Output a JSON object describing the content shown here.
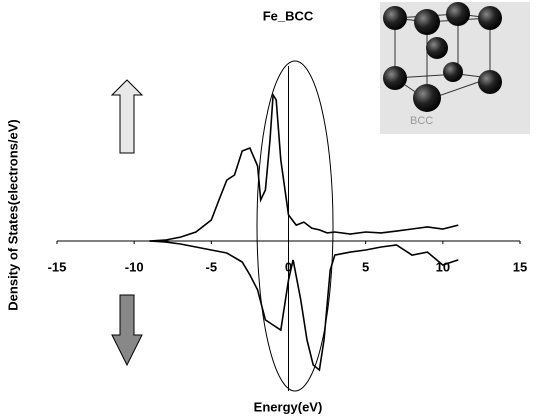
{
  "chart_data": {
    "type": "line",
    "title": "Fe_BCC",
    "xlabel": "Energy(eV)",
    "ylabel": "Density of States(electrons/eV)",
    "inset_label": "BCC",
    "xlim": [
      -15,
      15
    ],
    "xticks": [
      -15,
      -10,
      -5,
      0,
      5,
      10,
      15
    ],
    "ylim": [
      -5.5,
      5.5
    ],
    "grid": false,
    "series": [
      {
        "color": "#000000",
        "x": [
          -9,
          -8,
          -7,
          -6,
          -5,
          -4.5,
          -4,
          -3.5,
          -3,
          -2.5,
          -2,
          -1.8,
          -1.5,
          -1.2,
          -1,
          -0.8,
          -0.5,
          0,
          0.5,
          1,
          1.5,
          2,
          2.5,
          3,
          4,
          5,
          6,
          7,
          8,
          9,
          10,
          11
        ],
        "values": [
          0,
          0.03,
          0.13,
          0.3,
          0.7,
          1.37,
          2.03,
          2.2,
          3.0,
          3.1,
          2.5,
          1.37,
          1.7,
          3.37,
          4.87,
          4.7,
          2.7,
          0.87,
          0.53,
          0.63,
          0.43,
          0.37,
          0.27,
          0.3,
          0.23,
          0.3,
          0.27,
          0.33,
          0.4,
          0.47,
          0.4,
          0.53
        ]
      },
      {
        "color": "#000000",
        "x": [
          -9,
          -8,
          -7,
          -6,
          -5,
          -4,
          -3,
          -2.5,
          -2,
          -1.5,
          -1,
          -0.5,
          0,
          0.3,
          0.8,
          1.2,
          1.6,
          2,
          2.3,
          2.7,
          3,
          4,
          5,
          6,
          7,
          8,
          9,
          10,
          11
        ],
        "values": [
          0,
          -0.03,
          -0.1,
          -0.2,
          -0.3,
          -0.4,
          -0.7,
          -1.13,
          -1.63,
          -2.63,
          -2.8,
          -2.97,
          -1.3,
          -0.63,
          -1.97,
          -3.3,
          -4.13,
          -4.3,
          -3.3,
          -0.97,
          -0.47,
          -0.37,
          -0.3,
          -0.2,
          -0.13,
          -0.47,
          -0.37,
          -0.8,
          -0.63
        ]
      }
    ]
  }
}
